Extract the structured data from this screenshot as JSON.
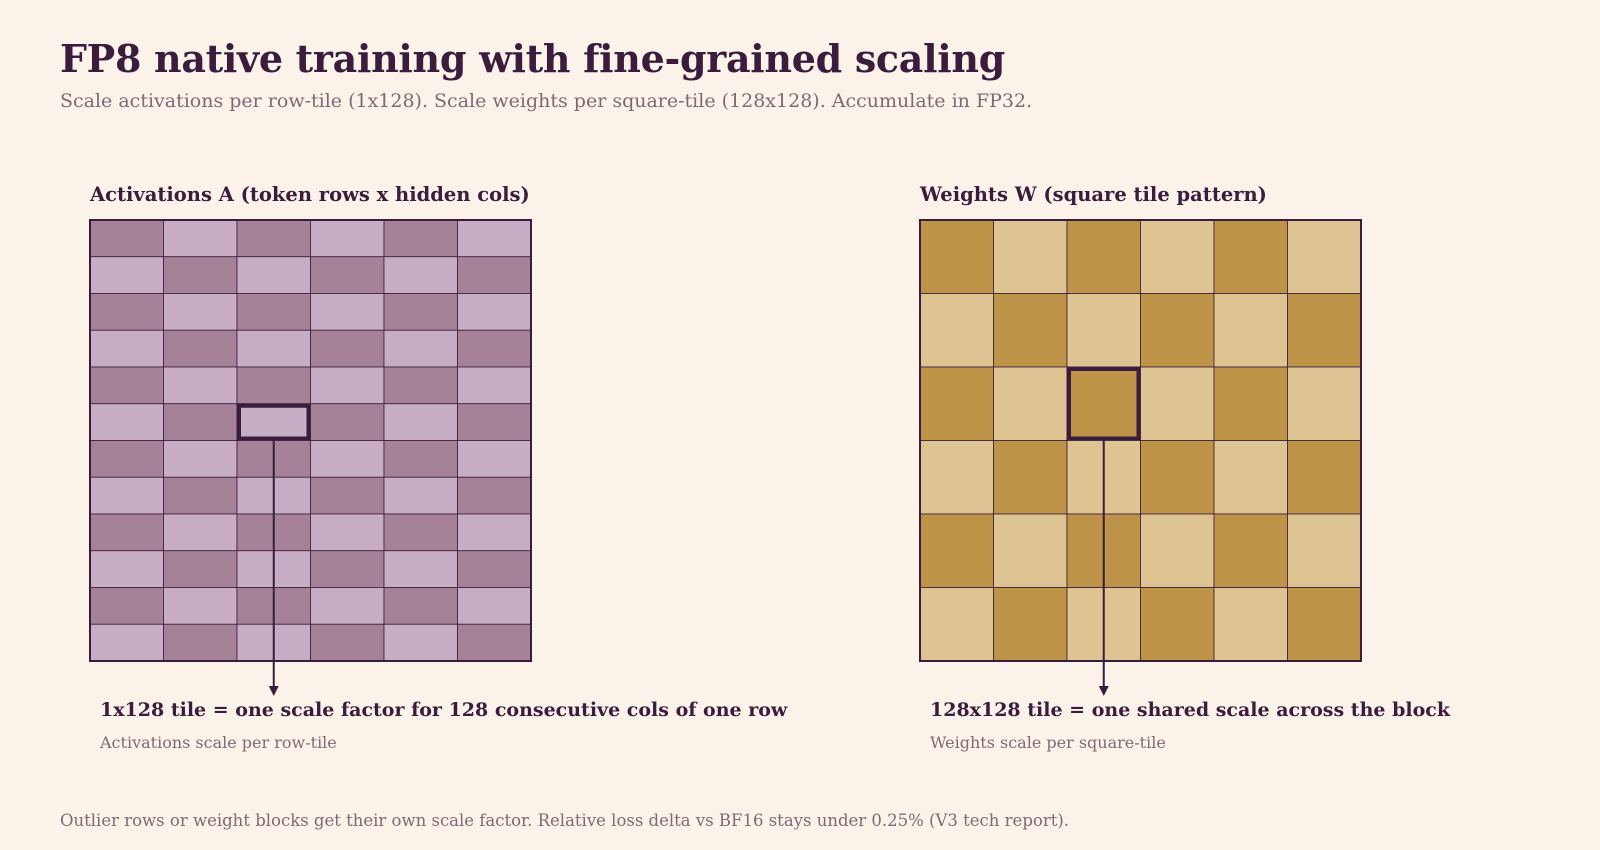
{
  "title": "FP8 native training with fine-grained scaling",
  "subtitle": "Scale activations per row-tile (1x128). Scale weights per square-tile (128x128). Accumulate in FP32.",
  "activations": {
    "title": "Activations A   (token rows x hidden cols)",
    "rows": 12,
    "cols": 6,
    "highlight": {
      "row": 5,
      "col": 2
    },
    "caption": "1x128 tile = one scale factor for 128 consecutive cols of one row",
    "sub": "Activations scale per row-tile",
    "colors": {
      "dark": "#a68299",
      "light": "#c8aec5",
      "line": "#3a1c3c"
    }
  },
  "weights": {
    "title": "Weights W   (square tile pattern)",
    "rows": 6,
    "cols": 6,
    "highlight": {
      "row": 2,
      "col": 2
    },
    "caption": "128x128 tile = one shared scale across the block",
    "sub": "Weights scale per square-tile",
    "colors": {
      "dark": "#be9449",
      "light": "#dec393",
      "line": "#3a1c3c"
    }
  },
  "footer": "Outlier rows or weight blocks get their own scale factor. Relative loss delta vs BF16 stays under 0.25% (V3 tech report)."
}
